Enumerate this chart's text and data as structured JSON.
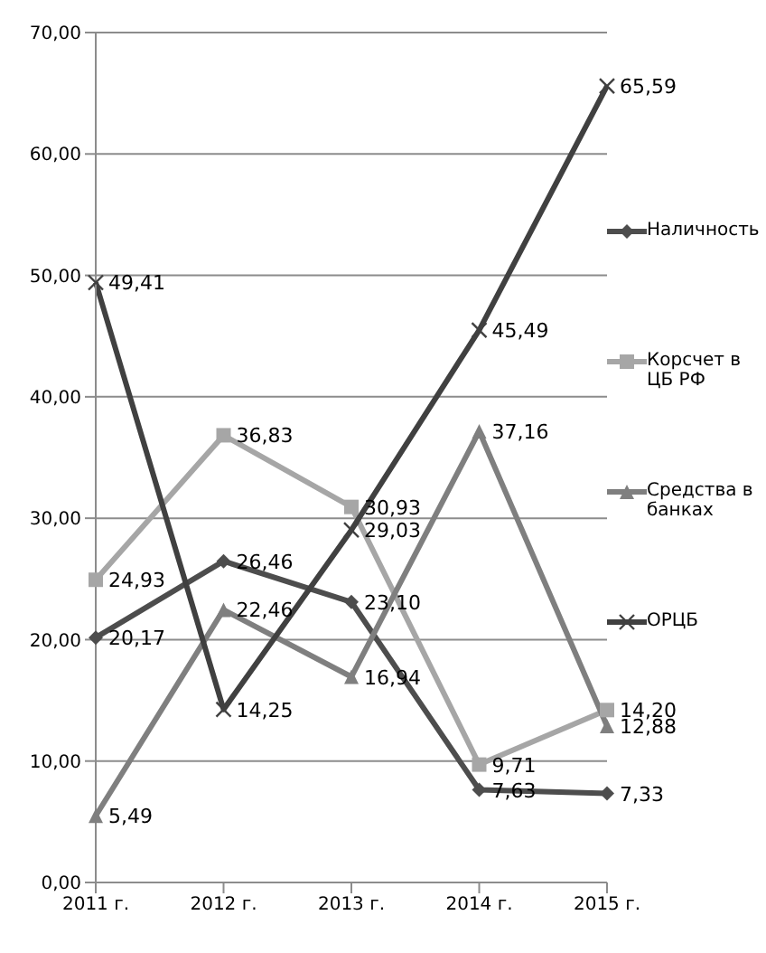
{
  "chart_data": {
    "type": "line",
    "categories": [
      "2011 г.",
      "2012 г.",
      "2013 г.",
      "2014 г.",
      "2015 г."
    ],
    "series": [
      {
        "name": "Наличность",
        "color": "#4d4d4d",
        "marker": "diamond",
        "values": [
          20.17,
          26.46,
          23.1,
          7.63,
          7.33
        ],
        "value_labels": [
          "20,17",
          "26,46",
          "23,10",
          "7,63",
          "7,33"
        ]
      },
      {
        "name": "Корсчет в ЦБ РФ",
        "color": "#a6a6a6",
        "marker": "square",
        "values": [
          24.93,
          36.83,
          30.93,
          9.71,
          14.2
        ],
        "value_labels": [
          "24,93",
          "36,83",
          "30,93",
          "9,71",
          "14,20"
        ]
      },
      {
        "name": "Средства в банках",
        "color": "#7f7f7f",
        "marker": "triangle",
        "values": [
          5.49,
          22.46,
          16.94,
          37.16,
          12.88
        ],
        "value_labels": [
          "5,49",
          "22,46",
          "16,94",
          "37,16",
          "12,88"
        ]
      },
      {
        "name": "ОРЦБ",
        "color": "#404040",
        "marker": "cross",
        "values": [
          49.41,
          14.25,
          29.03,
          45.49,
          65.59
        ],
        "value_labels": [
          "49,41",
          "14,25",
          "29,03",
          "45,49",
          "65,59"
        ]
      }
    ],
    "ylim": [
      0,
      70
    ],
    "yticks": [
      {
        "value": 0,
        "label": "0,00"
      },
      {
        "value": 10,
        "label": "10,00"
      },
      {
        "value": 20,
        "label": "20,00"
      },
      {
        "value": 30,
        "label": "30,00"
      },
      {
        "value": 40,
        "label": "40,00"
      },
      {
        "value": 50,
        "label": "50,00"
      },
      {
        "value": 60,
        "label": "60,00"
      },
      {
        "value": 70,
        "label": "70,00"
      }
    ],
    "grid": "y",
    "legend": "right"
  }
}
